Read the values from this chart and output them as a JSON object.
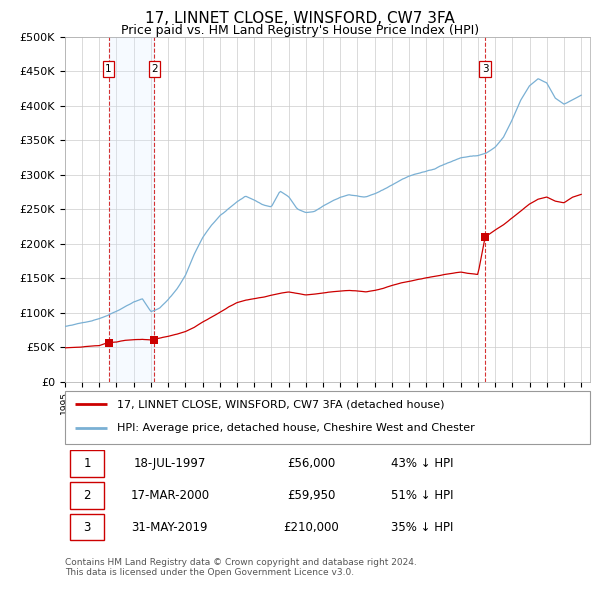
{
  "title": "17, LINNET CLOSE, WINSFORD, CW7 3FA",
  "subtitle": "Price paid vs. HM Land Registry's House Price Index (HPI)",
  "title_fontsize": 11,
  "subtitle_fontsize": 9,
  "xlim": [
    1995.0,
    2025.5
  ],
  "ylim": [
    0,
    500000
  ],
  "yticks": [
    0,
    50000,
    100000,
    150000,
    200000,
    250000,
    300000,
    350000,
    400000,
    450000,
    500000
  ],
  "ytick_labels": [
    "£0",
    "£50K",
    "£100K",
    "£150K",
    "£200K",
    "£250K",
    "£300K",
    "£350K",
    "£400K",
    "£450K",
    "£500K"
  ],
  "xticks": [
    1995,
    1996,
    1997,
    1998,
    1999,
    2000,
    2001,
    2002,
    2003,
    2004,
    2005,
    2006,
    2007,
    2008,
    2009,
    2010,
    2011,
    2012,
    2013,
    2014,
    2015,
    2016,
    2017,
    2018,
    2019,
    2020,
    2021,
    2022,
    2023,
    2024,
    2025
  ],
  "hpi_color": "#7ab0d4",
  "price_color": "#cc0000",
  "background_color": "#ffffff",
  "grid_color": "#cccccc",
  "vline_color": "#cc0000",
  "span_color": "#ddeeff",
  "transactions": [
    {
      "num": 1,
      "year": 1997.54,
      "price": 56000,
      "date": "18-JUL-1997",
      "price_str": "£56,000",
      "pct": "43%"
    },
    {
      "num": 2,
      "year": 2000.21,
      "price": 59950,
      "date": "17-MAR-2000",
      "price_str": "£59,950",
      "pct": "51%"
    },
    {
      "num": 3,
      "year": 2019.42,
      "price": 210000,
      "date": "31-MAY-2019",
      "price_str": "£210,000",
      "pct": "35%"
    }
  ],
  "legend_entries": [
    {
      "label": "17, LINNET CLOSE, WINSFORD, CW7 3FA (detached house)",
      "color": "#cc0000"
    },
    {
      "label": "HPI: Average price, detached house, Cheshire West and Chester",
      "color": "#7ab0d4"
    }
  ],
  "footnote": "Contains HM Land Registry data © Crown copyright and database right 2024.\nThis data is licensed under the Open Government Licence v3.0."
}
